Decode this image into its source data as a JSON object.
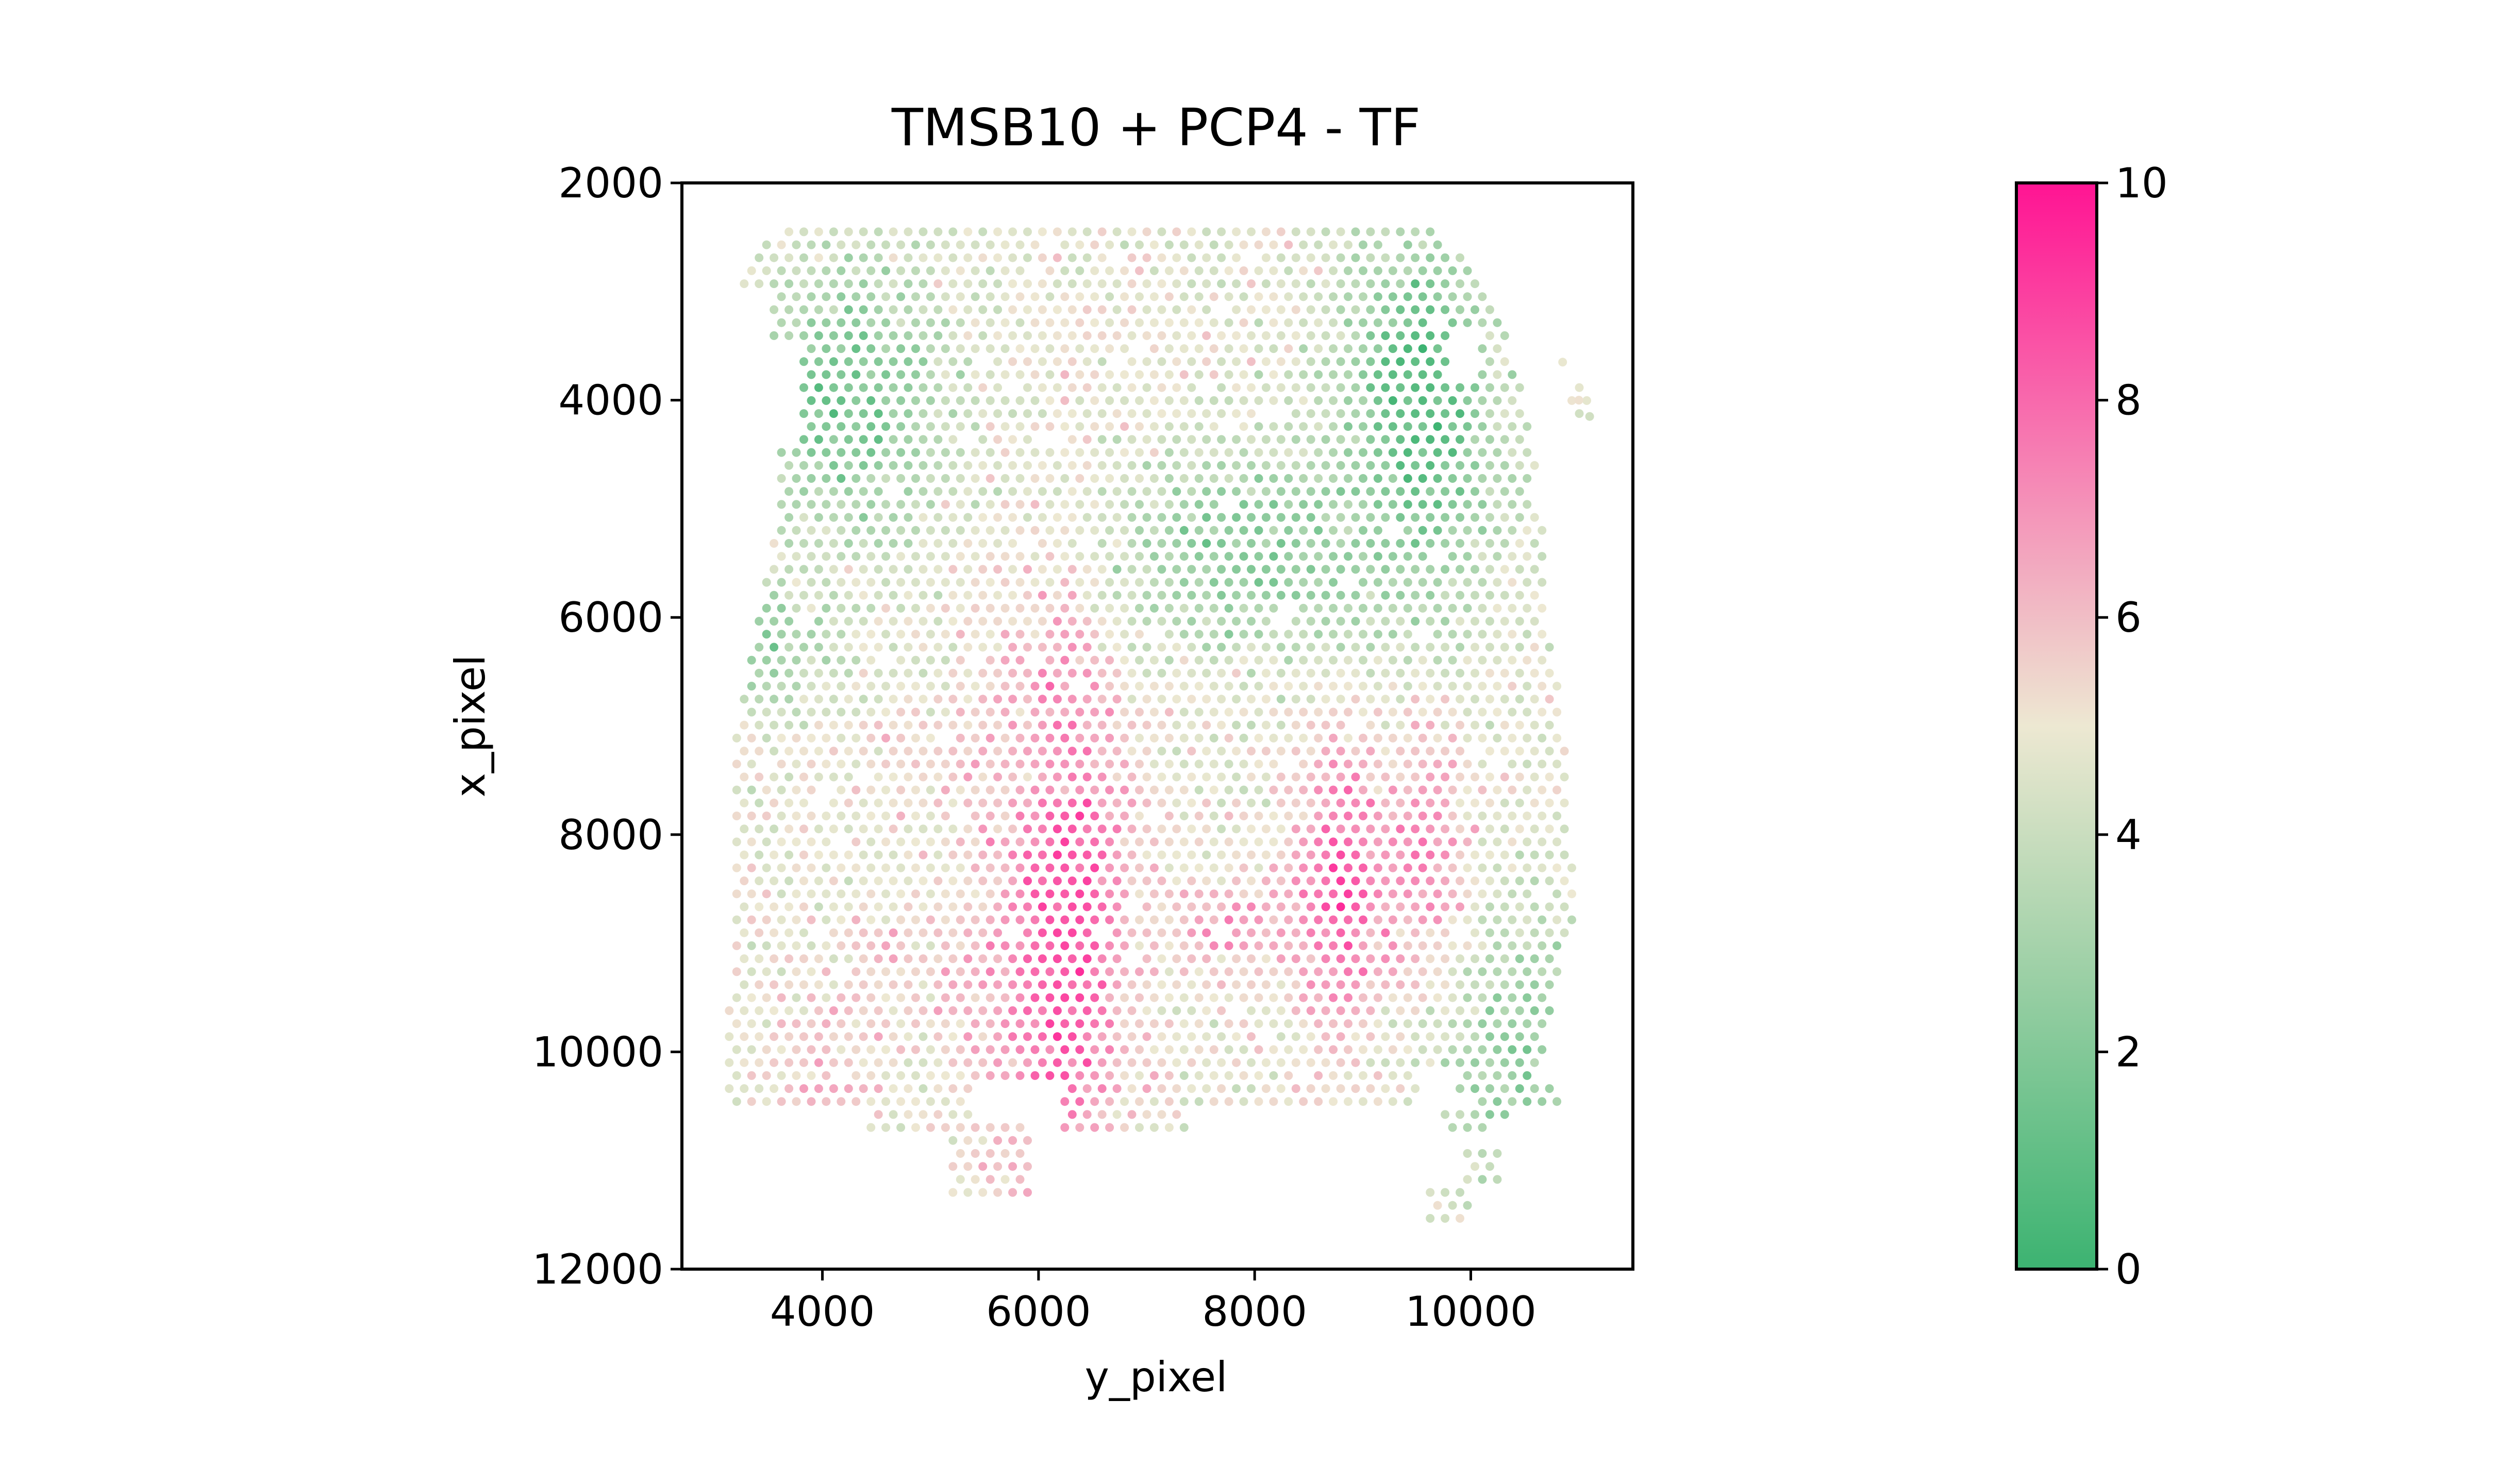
{
  "chart_data": {
    "type": "scatter",
    "title": "TMSB10 + PCP4 - TF",
    "xlabel": "y_pixel",
    "ylabel": "x_pixel",
    "xlim": [
      2700,
      11500
    ],
    "ylim": [
      12000,
      2000
    ],
    "y_inverted": true,
    "x_ticks": [
      4000,
      6000,
      8000,
      10000
    ],
    "y_ticks": [
      2000,
      4000,
      6000,
      8000,
      10000,
      12000
    ],
    "grid": false,
    "legend": "none",
    "colorbar": {
      "min": 0,
      "max": 10,
      "ticks": [
        0,
        2,
        4,
        6,
        8,
        10
      ],
      "colors": [
        "#3cb371",
        "#ede8d2",
        "#ff1493"
      ]
    },
    "spots": {
      "spacing": 138,
      "outline": [
        [
          2450,
          3600,
          9700
        ],
        [
          2700,
          3300,
          9950
        ],
        [
          3000,
          3100,
          10150
        ],
        [
          3300,
          3100,
          10300
        ],
        [
          3600,
          3200,
          10400
        ],
        [
          4000,
          3400,
          10500
        ],
        [
          4500,
          3600,
          10600
        ],
        [
          5000,
          3600,
          10650
        ],
        [
          5500,
          3500,
          10700
        ],
        [
          6000,
          3400,
          10700
        ],
        [
          6500,
          3300,
          10800
        ],
        [
          7000,
          3200,
          10850
        ],
        [
          7500,
          3200,
          10900
        ],
        [
          8000,
          3200,
          10900
        ],
        [
          8500,
          3200,
          11000
        ],
        [
          9000,
          3200,
          10900
        ],
        [
          9500,
          3100,
          10750
        ],
        [
          10000,
          3100,
          10700
        ],
        [
          10300,
          3100,
          10600
        ],
        [
          10500,
          3100,
          10400
        ],
        [
          10700,
          3100,
          10200
        ]
      ],
      "gaps": [
        [
          3000,
          4500,
          2700,
          3500
        ],
        [
          3500,
          4400,
          3500,
          3800
        ],
        [
          3300,
          3800,
          9800,
          10100
        ],
        [
          10300,
          11200,
          5400,
          6200
        ],
        [
          10500,
          11200,
          7350,
          9700
        ],
        [
          10500,
          11000,
          3100,
          4400
        ],
        [
          10150,
          10500,
          9500,
          10000
        ]
      ],
      "islands": [
        [
          10600,
          11300,
          5200,
          5900
        ],
        [
          11200,
          11600,
          9600,
          10000
        ],
        [
          10900,
          11200,
          9950,
          10250
        ],
        [
          10150,
          10350,
          9900,
          10200
        ],
        [
          10250,
          10550,
          10450,
          10800
        ],
        [
          3800,
          4200,
          10900,
          11100
        ]
      ],
      "singles": [
        [
          3650,
          10850
        ],
        [
          4000,
          11000
        ],
        [
          4150,
          11100
        ]
      ],
      "hotspots": [
        [
          8700,
          6200,
          2800,
          600,
          9.0
        ],
        [
          8500,
          8800,
          1400,
          450,
          8.5
        ],
        [
          8500,
          9600,
          1500,
          400,
          7.5
        ],
        [
          9400,
          5500,
          800,
          400,
          6.5
        ],
        [
          9200,
          4500,
          600,
          350,
          6.0
        ],
        [
          8800,
          7800,
          400,
          600,
          7.0
        ],
        [
          7300,
          5500,
          600,
          900,
          6.0
        ],
        [
          10200,
          4000,
          800,
          500,
          6.0
        ],
        [
          10300,
          9000,
          600,
          500,
          5.5
        ]
      ],
      "coldspots": [
        [
          4100,
          9500,
          1700,
          700,
          0.6
        ],
        [
          4000,
          4200,
          1200,
          900,
          1.6
        ],
        [
          5400,
          8000,
          900,
          1400,
          2.2
        ],
        [
          6200,
          3400,
          600,
          700,
          2.3
        ],
        [
          10100,
          10500,
          1300,
          1000,
          2.5
        ]
      ],
      "base_value": 4.8
    }
  }
}
